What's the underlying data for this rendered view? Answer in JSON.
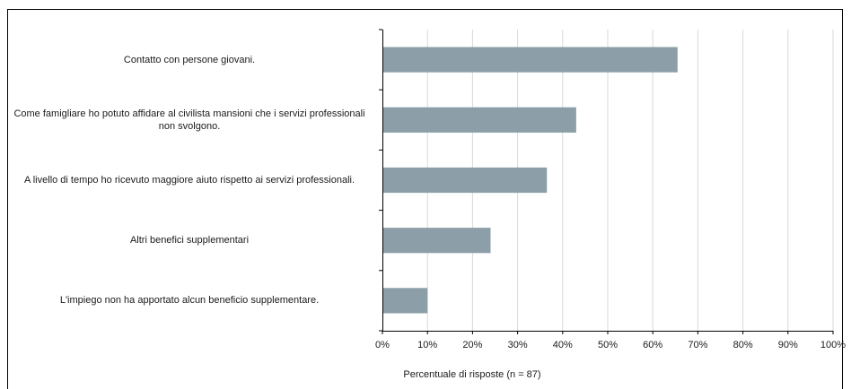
{
  "chart_data": {
    "type": "bar",
    "orientation": "horizontal",
    "categories": [
      "Contatto con persone giovani.",
      "Come famigliare ho potuto affidare al civilista mansioni che i servizi professionali non svolgono.",
      "A livello di tempo ho ricevuto maggiore aiuto rispetto ai servizi professionali.",
      "Altri benefici supplementari",
      "L'impiego non ha apportato alcun beneficio supplementare."
    ],
    "values": [
      65.5,
      43,
      36.5,
      24,
      10
    ],
    "xlabel": "Percentuale di risposte (n = 87)",
    "ylabel": "",
    "xlim": [
      0,
      100
    ],
    "xticks": [
      "0%",
      "10%",
      "20%",
      "30%",
      "40%",
      "50%",
      "60%",
      "70%",
      "80%",
      "90%",
      "100%"
    ],
    "grid": true,
    "bar_color": "#8c9ea7"
  }
}
